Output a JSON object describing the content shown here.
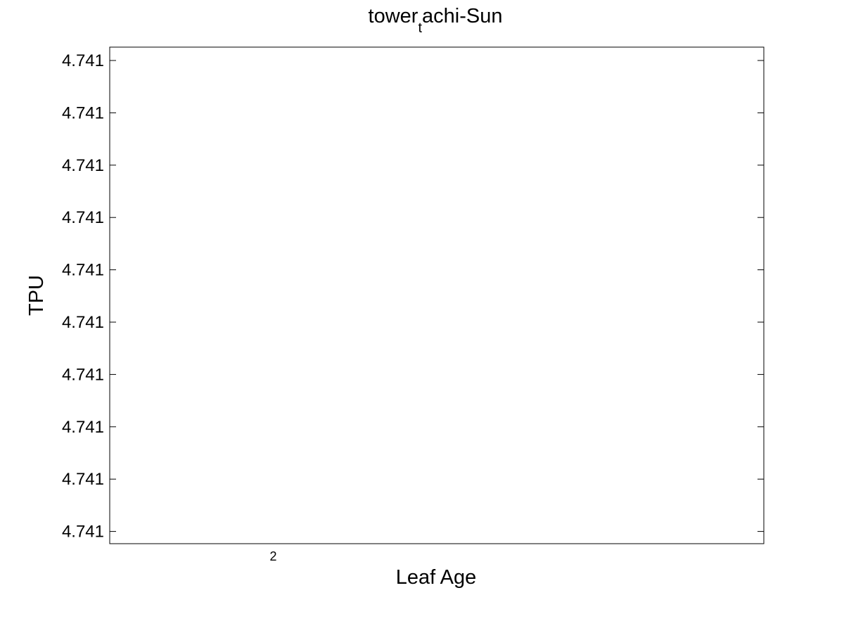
{
  "chart_data": {
    "type": "line",
    "title": {
      "before_subscript": "tower",
      "subscript": "t",
      "after_subscript": "achi-Sun"
    },
    "xlabel": "Leaf Age",
    "ylabel": "TPU",
    "x_ticks": [
      2
    ],
    "x_tick_labels": [
      "2"
    ],
    "xlim": [
      1,
      5
    ],
    "y_tick_labels": [
      "4.741",
      "4.741",
      "4.741",
      "4.741",
      "4.741",
      "4.741",
      "4.741",
      "4.741",
      "4.741",
      "4.741"
    ],
    "series": [
      {
        "x": [],
        "y": []
      }
    ],
    "grid": false,
    "legend": "none",
    "colors": {
      "axes": "#000000",
      "background": "#ffffff"
    }
  }
}
